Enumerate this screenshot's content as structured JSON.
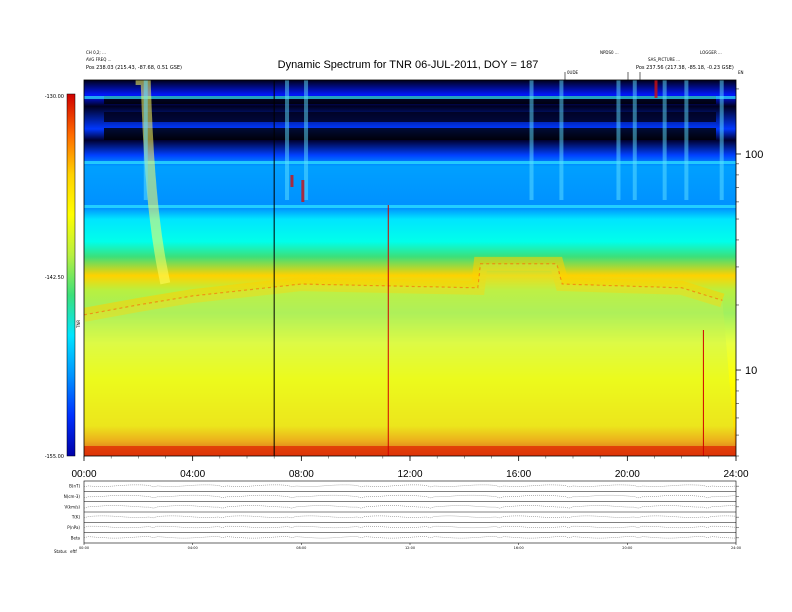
{
  "title": "Dynamic Spectrum for TNR 06-JUL-2011, DOY = 187",
  "header_left": {
    "line1": "CH 0,2; ...",
    "line2": "AVG FREQ ...",
    "line3": "Pos  238.03 (215.43, -87.68, 0.51 GSE)"
  },
  "header_right": {
    "line1a": "NPDS0 ...",
    "line1b": "LOGGER ...",
    "line2": "SAS_PICTURE ...",
    "line3": "Pos  237.56 (217.38, -85.18, -0.23 GSE)"
  },
  "markers": {
    "m1": "0UDE",
    "m2": "EN"
  },
  "colorbar": {
    "ticks": [
      "-130.00",
      "-142.50",
      "-155.00"
    ],
    "unit": "TNR",
    "colors": [
      "#d00000",
      "#ff6a00",
      "#ffd200",
      "#ffff00",
      "#b8f040",
      "#3ce07a",
      "#00e5ff",
      "#0094ff",
      "#0030ff",
      "#0000a8"
    ]
  },
  "chart_data": {
    "type": "heatmap",
    "title": "Dynamic Spectrum for TNR 06-JUL-2011, DOY = 187",
    "x_ticks": [
      "00:00",
      "04:00",
      "08:00",
      "12:00",
      "16:00",
      "20:00",
      "24:00"
    ],
    "x_range_hours": [
      0,
      24
    ],
    "y_scale": "log",
    "y_ticks": [
      100,
      10
    ],
    "y_range": [
      4,
      220
    ],
    "color_range": [
      -155.0,
      -130.0
    ],
    "features": {
      "dispersive_burst_start_hour": 2.0,
      "vertical_lines_hours": [
        7.0,
        11.2,
        22.8
      ],
      "plasma_line_level_by_hour": [
        [
          0,
          18
        ],
        [
          2,
          20
        ],
        [
          4,
          22
        ],
        [
          8,
          25
        ],
        [
          14.5,
          24
        ],
        [
          14.6,
          31
        ],
        [
          17.4,
          31
        ],
        [
          17.6,
          25
        ],
        [
          22,
          24
        ],
        [
          23.5,
          21
        ]
      ]
    }
  },
  "subpanels": {
    "labels": [
      "B(nT)",
      "N(cm-3)",
      "V(km/s)",
      "T(K)",
      "P(nPa)",
      "Beta"
    ],
    "left_bottom": "Status",
    "left_bottom2": "eftf",
    "x_ticks": [
      "00:00",
      "04:00",
      "08:00",
      "12:00",
      "16:00",
      "20:00",
      "24:00"
    ]
  }
}
